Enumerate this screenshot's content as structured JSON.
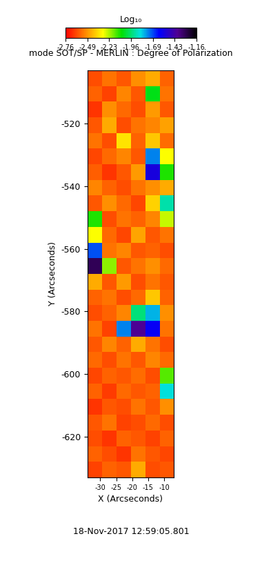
{
  "chart_data": {
    "type": "heatmap",
    "title": "mode SOT/SP - MERLIN : Degree of Polarization",
    "xlabel": "X (Arcseconds)",
    "ylabel": "Y (Arcseconds)",
    "timestamp": "18-Nov-2017 12:59:05.801",
    "xlim": [
      -34,
      -7
    ],
    "xticks": [
      -30,
      -25,
      -20,
      -15,
      -10
    ],
    "ylim": [
      -633,
      -503
    ],
    "yticks": [
      -620,
      -600,
      -580,
      -560,
      -540,
      -520
    ],
    "cells": [
      [
        -2.62,
        -2.55,
        -2.6,
        -2.5,
        -2.45,
        -2.58
      ],
      [
        -2.58,
        -2.64,
        -2.52,
        -2.6,
        -2.05,
        -2.55
      ],
      [
        -2.66,
        -2.5,
        -2.57,
        -2.62,
        -2.48,
        -2.6
      ],
      [
        -2.6,
        -2.45,
        -2.62,
        -2.55,
        -2.52,
        -2.47
      ],
      [
        -2.55,
        -2.62,
        -2.35,
        -2.58,
        -2.4,
        -2.56
      ],
      [
        -2.63,
        -2.57,
        -2.52,
        -2.6,
        -1.75,
        -2.3
      ],
      [
        -2.59,
        -2.66,
        -2.6,
        -2.48,
        -1.55,
        -2.1
      ],
      [
        -2.52,
        -2.58,
        -2.62,
        -2.55,
        -2.5,
        -2.45
      ],
      [
        -2.6,
        -2.5,
        -2.57,
        -2.63,
        -2.38,
        -1.9
      ],
      [
        -2.1,
        -2.62,
        -2.55,
        -2.58,
        -2.52,
        -2.25
      ],
      [
        -2.3,
        -2.57,
        -2.63,
        -2.46,
        -2.6,
        -2.55
      ],
      [
        -1.7,
        -2.55,
        -2.52,
        -2.6,
        -2.58,
        -2.62
      ],
      [
        -1.3,
        -2.2,
        -2.6,
        -2.55,
        -2.5,
        -2.57
      ],
      [
        -2.45,
        -2.6,
        -2.48,
        -2.62,
        -2.55,
        -2.6
      ],
      [
        -2.58,
        -2.55,
        -2.62,
        -2.57,
        -2.4,
        -2.58
      ],
      [
        -2.62,
        -2.58,
        -2.52,
        -1.95,
        -1.8,
        -2.5
      ],
      [
        -2.55,
        -2.64,
        -1.75,
        -1.4,
        -1.6,
        -2.55
      ],
      [
        -2.6,
        -2.52,
        -2.58,
        -2.45,
        -2.55,
        -2.62
      ],
      [
        -2.57,
        -2.62,
        -2.55,
        -2.6,
        -2.52,
        -2.57
      ],
      [
        -2.63,
        -2.58,
        -2.6,
        -2.56,
        -2.62,
        -2.15
      ],
      [
        -2.58,
        -2.65,
        -2.57,
        -2.6,
        -2.58,
        -1.85
      ],
      [
        -2.66,
        -2.6,
        -2.62,
        -2.55,
        -2.6,
        -2.5
      ],
      [
        -2.6,
        -2.55,
        -2.64,
        -2.62,
        -2.57,
        -2.62
      ],
      [
        -2.62,
        -2.66,
        -2.58,
        -2.6,
        -2.64,
        -2.58
      ],
      [
        -2.58,
        -2.62,
        -2.66,
        -2.55,
        -2.6,
        -2.63
      ],
      [
        -2.64,
        -2.58,
        -2.6,
        -2.45,
        -2.62,
        -2.6
      ]
    ],
    "colorbar": {
      "label": "Log₁₀",
      "range": [
        -2.76,
        -1.16
      ],
      "ticks": [
        -2.76,
        -2.49,
        -2.23,
        -1.96,
        -1.69,
        -1.43,
        -1.16
      ]
    }
  }
}
